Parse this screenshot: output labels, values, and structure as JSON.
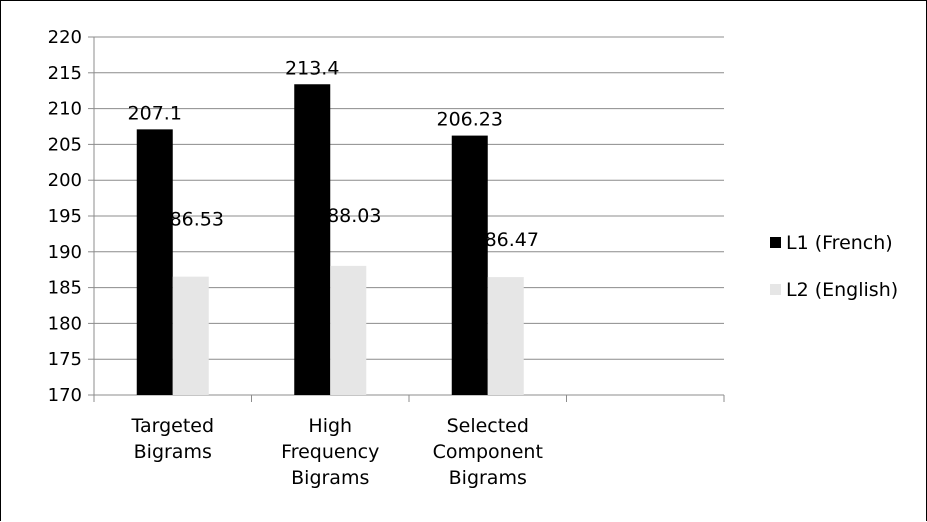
{
  "chart_data": {
    "type": "bar",
    "categories": [
      [
        "Targeted",
        "Bigrams"
      ],
      [
        "High",
        "Frequency",
        "Bigrams"
      ],
      [
        "Selected",
        "Component",
        "Bigrams"
      ],
      [
        ""
      ]
    ],
    "series": [
      {
        "name": "L1 (French)",
        "color": "#000000",
        "values": [
          207.1,
          213.4,
          206.23,
          null
        ],
        "labels": [
          "207.1",
          "213.4",
          "206.23",
          ""
        ]
      },
      {
        "name": "L2 (English)",
        "color": "#e6e6e6",
        "values": [
          186.53,
          188.03,
          186.47,
          null
        ],
        "labels": [
          "186.53",
          "188.03",
          "186.47",
          ""
        ]
      }
    ],
    "ylim": [
      170,
      220
    ],
    "ytick_step": 5,
    "yticks": [
      "170",
      "175",
      "180",
      "185",
      "190",
      "195",
      "200",
      "205",
      "210",
      "215",
      "220"
    ],
    "title": "",
    "xlabel": "",
    "ylabel": "",
    "grid": true,
    "legend_position": "right"
  }
}
